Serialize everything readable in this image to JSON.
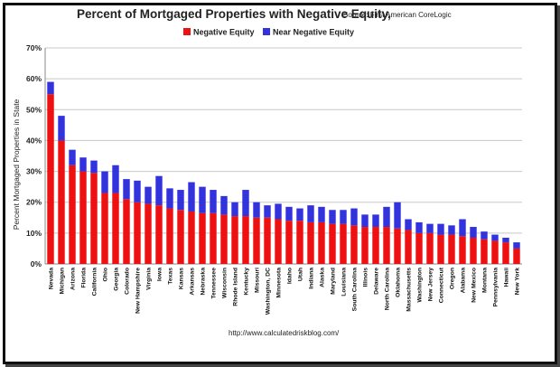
{
  "chart_data": {
    "type": "bar",
    "stacked": true,
    "title": "Percent of Mortgaged Properties with Negative Equity,",
    "source": "Source: First American CoreLogic",
    "ylabel": "Percent Mortgaged Properties in State",
    "footer": "http://www.calculatedriskblog.com/",
    "ylim": [
      0,
      70
    ],
    "yticks": [
      "0%",
      "10%",
      "20%",
      "30%",
      "40%",
      "50%",
      "60%",
      "70%"
    ],
    "grid": true,
    "legend_position": "top-center",
    "categories": [
      "Nevada",
      "Michigan",
      "Arizona",
      "Florida",
      "California",
      "Ohio",
      "Georgia",
      "Colorado",
      "New Hampshire",
      "Virginia",
      "Iowa",
      "Texas",
      "Kansas",
      "Arkansas",
      "Nebraska",
      "Tennessee",
      "Wisconsin",
      "Rhode Island",
      "Kentucky",
      "Missouri",
      "Washington, DC",
      "Minnesota",
      "Idaho",
      "Utah",
      "Indiana",
      "Alaska",
      "Maryland",
      "Louisiana",
      "South Carolina",
      "Illinois",
      "Delaware",
      "North Carolina",
      "Oklahoma",
      "Massachusetts",
      "Washington",
      "New Jersey",
      "Connecticut",
      "Oregon",
      "Alabama",
      "New Mexico",
      "Montana",
      "Pennsylvania",
      "Hawaii",
      "New York"
    ],
    "series": [
      {
        "name": "Negative Equity",
        "color": "#ee1111",
        "values": [
          55,
          40,
          32,
          30,
          29.5,
          23,
          23,
          21,
          20,
          19.5,
          19,
          18,
          17.5,
          17,
          16.5,
          16.5,
          16,
          15.5,
          15.5,
          15,
          15,
          14.5,
          14,
          14,
          13.5,
          13.5,
          13,
          13,
          12.5,
          12,
          12,
          12,
          11.5,
          11,
          10,
          10,
          9.5,
          9.5,
          9,
          8.5,
          8,
          7.5,
          7,
          5
        ]
      },
      {
        "name": "Near Negative Equity",
        "color": "#3333dd",
        "values": [
          4,
          8,
          5,
          4.5,
          4,
          7,
          9,
          6.5,
          7,
          5.5,
          9.5,
          6.5,
          6.5,
          9.5,
          8.5,
          7.5,
          6,
          4.5,
          8.5,
          5,
          4,
          5,
          4.5,
          4,
          5.5,
          5,
          4.5,
          4.5,
          5.5,
          4,
          4,
          6.5,
          8.5,
          3.5,
          3.5,
          3,
          3.5,
          3,
          5.5,
          3.5,
          2.5,
          2,
          1.5,
          2
        ]
      }
    ]
  }
}
